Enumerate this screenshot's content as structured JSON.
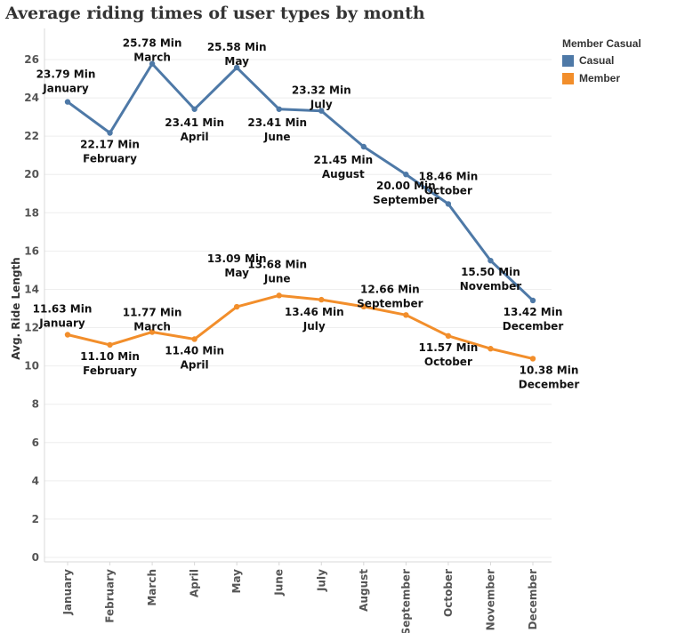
{
  "page_title": "Average riding times of user types by month",
  "legend": {
    "title": "Member Casual",
    "items": [
      {
        "label": "Casual",
        "color": "#4e79a7"
      },
      {
        "label": "Member",
        "color": "#f28e2b"
      }
    ]
  },
  "chart_data": {
    "type": "line",
    "title": "Average riding times of user types by month",
    "xlabel": "",
    "ylabel": "Avg. Ride Length",
    "ylim": [
      0,
      26
    ],
    "yticks": [
      0,
      2,
      4,
      6,
      8,
      10,
      12,
      14,
      16,
      18,
      20,
      22,
      24,
      26
    ],
    "grid": true,
    "legend_position": "top-right",
    "categories": [
      "January",
      "February",
      "March",
      "April",
      "May",
      "June",
      "July",
      "August",
      "September",
      "October",
      "November",
      "December"
    ],
    "series": [
      {
        "name": "Casual",
        "color": "#4e79a7",
        "values": [
          23.79,
          22.17,
          25.78,
          23.41,
          25.58,
          23.41,
          23.32,
          21.45,
          20.0,
          18.46,
          15.5,
          13.42
        ],
        "labels": [
          "23.79 Min",
          "22.17 Min",
          "25.78 Min",
          "23.41 Min",
          "25.58 Min",
          "23.41 Min",
          "23.32 Min",
          "21.45 Min",
          "20.00 Min",
          "18.46 Min",
          "15.50 Min",
          "13.42 Min"
        ]
      },
      {
        "name": "Member",
        "color": "#f28e2b",
        "values": [
          11.63,
          11.1,
          11.77,
          11.4,
          13.09,
          13.68,
          13.46,
          13.1,
          12.66,
          11.57,
          10.9,
          10.38
        ],
        "labels": [
          "11.63 Min",
          "11.10 Min",
          "11.77 Min",
          "11.40 Min",
          "13.09 Min",
          "13.68 Min",
          "13.46 Min",
          null,
          "12.66 Min",
          "11.57 Min",
          null,
          "10.38 Min"
        ]
      }
    ]
  }
}
